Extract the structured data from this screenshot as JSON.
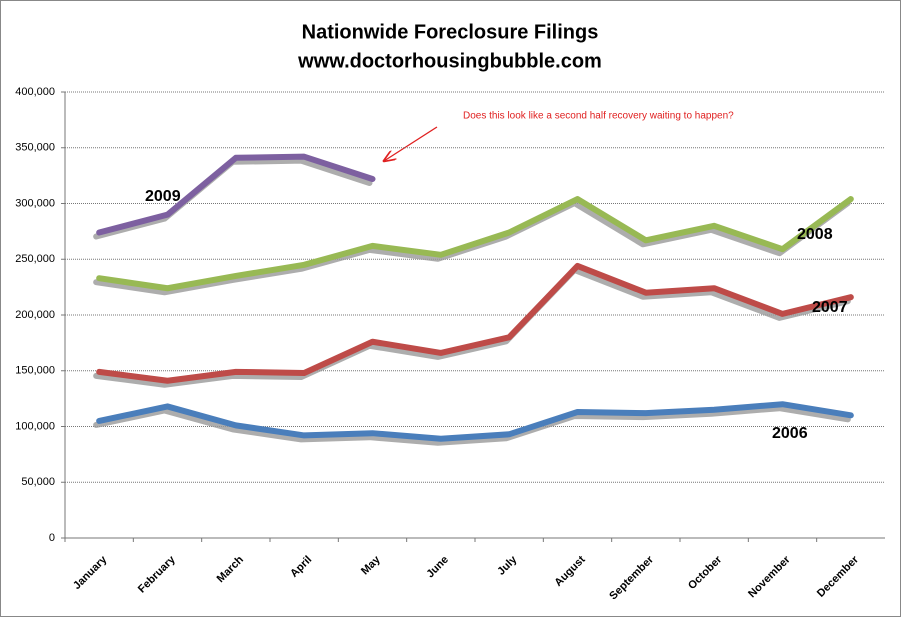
{
  "chart_data": {
    "type": "line",
    "title": "Nationwide Foreclosure Filings",
    "subtitle": "www.doctorhousingbubble.com",
    "annotation": "Does this look like a second half recovery waiting to happen?",
    "categories": [
      "January",
      "February",
      "March",
      "April",
      "May",
      "June",
      "July",
      "August",
      "September",
      "October",
      "November",
      "December"
    ],
    "series": [
      {
        "name": "2006",
        "color": "#4a7ebb",
        "values": [
          105000,
          118000,
          101000,
          92000,
          94000,
          89000,
          93000,
          113000,
          112000,
          115000,
          120000,
          110000
        ]
      },
      {
        "name": "2007",
        "color": "#be4b48",
        "values": [
          149000,
          141000,
          149000,
          148000,
          176000,
          166000,
          180000,
          244000,
          220000,
          224000,
          201000,
          216000
        ]
      },
      {
        "name": "2008",
        "color": "#98b954",
        "values": [
          233000,
          224000,
          235000,
          245000,
          262000,
          254000,
          274000,
          304000,
          267000,
          280000,
          259000,
          304000
        ]
      },
      {
        "name": "2009",
        "color": "#7d60a0",
        "values": [
          274000,
          290000,
          341000,
          342000,
          322000,
          null,
          null,
          null,
          null,
          null,
          null,
          null
        ]
      }
    ],
    "ylim": [
      0,
      400000
    ],
    "yticks": [
      0,
      {
        "value": 50000,
        "label": "50,000"
      },
      {
        "value": 100000,
        "label": "100,000"
      },
      {
        "value": 150000,
        "label": "150,000"
      },
      {
        "value": 200000,
        "label": "200,000"
      },
      {
        "value": 250000,
        "label": "250,000"
      },
      {
        "value": 300000,
        "label": "300,000"
      },
      {
        "value": 350000,
        "label": "350,000"
      },
      {
        "value": 400000,
        "label": "400,000"
      }
    ],
    "grid": true
  }
}
